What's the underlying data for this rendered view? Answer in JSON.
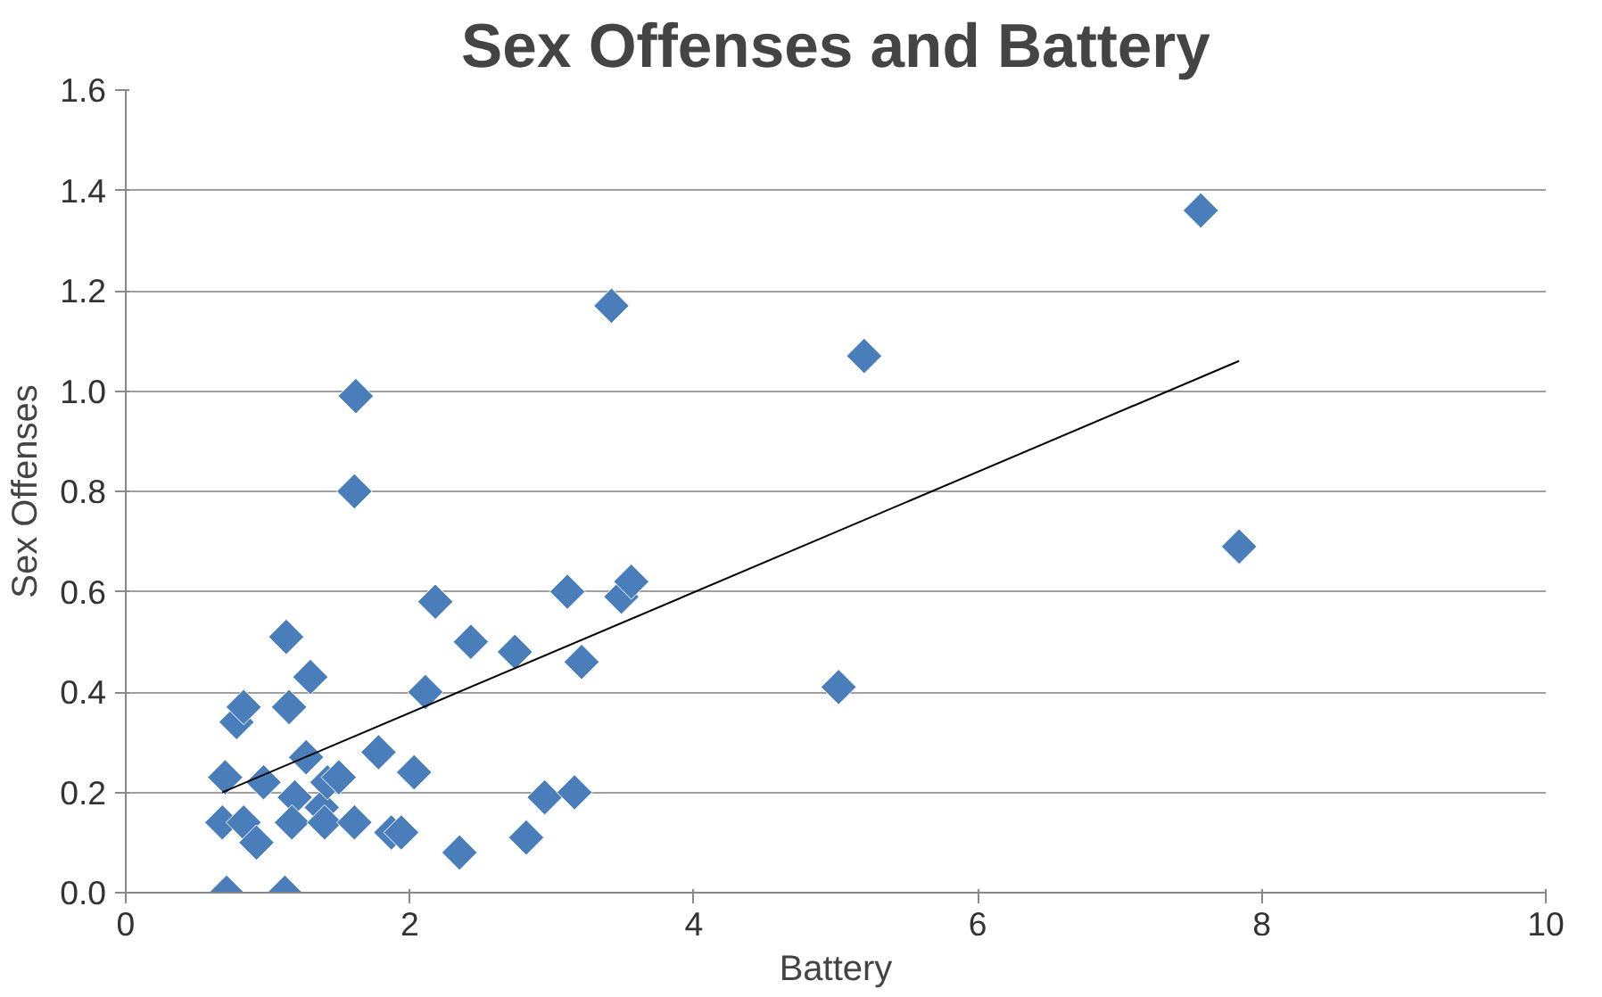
{
  "chart_data": {
    "type": "scatter",
    "title": "Sex Offenses and Battery",
    "xlabel": "Battery",
    "ylabel": "Sex Offenses",
    "xlim": [
      0,
      10
    ],
    "ylim": [
      0,
      1.6
    ],
    "xticks": [
      0,
      2,
      4,
      6,
      8,
      10
    ],
    "yticks": [
      {
        "value": 0,
        "label": "0.0"
      },
      {
        "value": 0.2,
        "label": "0.2"
      },
      {
        "value": 0.4,
        "label": "0.4"
      },
      {
        "value": 0.6,
        "label": "0.6"
      },
      {
        "value": 0.8,
        "label": "0.8"
      },
      {
        "value": 1.0,
        "label": "1.0"
      },
      {
        "value": 1.2,
        "label": "1.2"
      },
      {
        "value": 1.4,
        "label": "1.4"
      },
      {
        "value": 1.6,
        "label": "1.6"
      }
    ],
    "grid": "y",
    "series": [
      {
        "marker": "diamond",
        "color": "#4a7ebb",
        "x": [
          0.71,
          1.12,
          0.68,
          0.83,
          0.92,
          0.7,
          0.97,
          0.78,
          0.83,
          1.13,
          1.15,
          1.3,
          1.19,
          1.17,
          1.27,
          1.38,
          1.42,
          1.5,
          1.4,
          1.61,
          1.78,
          1.61,
          1.62,
          1.87,
          1.94,
          2.03,
          2.11,
          2.18,
          2.35,
          2.43,
          2.74,
          2.82,
          2.95,
          3.16,
          3.11,
          3.21,
          3.49,
          3.56,
          3.42,
          5.02,
          5.2,
          7.57,
          7.84
        ],
        "values": [
          0.0,
          0.0,
          0.14,
          0.14,
          0.1,
          0.23,
          0.22,
          0.34,
          0.37,
          0.51,
          0.37,
          0.43,
          0.19,
          0.14,
          0.27,
          0.17,
          0.22,
          0.23,
          0.14,
          0.14,
          0.28,
          0.8,
          0.99,
          0.12,
          0.12,
          0.24,
          0.4,
          0.58,
          0.08,
          0.5,
          0.48,
          0.11,
          0.19,
          0.2,
          0.6,
          0.46,
          0.59,
          0.62,
          1.17,
          0.41,
          1.07,
          1.36,
          0.69
        ]
      },
      {
        "type": "line",
        "color": "#000000",
        "x": [
          0.68,
          7.84
        ],
        "values": [
          0.2,
          1.06
        ]
      }
    ]
  }
}
